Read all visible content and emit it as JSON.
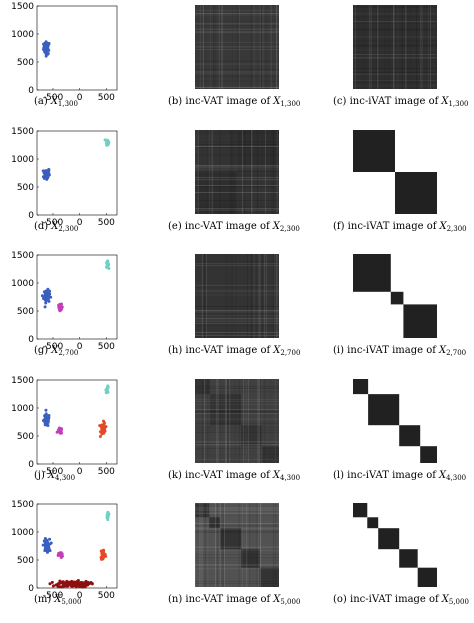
{
  "rows": [
    {
      "caption_a": {
        "label": "(a)",
        "var": "X",
        "sub": "1,300"
      },
      "caption_b": {
        "label": "(b) inc-VAT image of",
        "var": "X",
        "sub": "1,300"
      },
      "caption_c": {
        "label": "(c) inc-iVAT image of",
        "var": "X",
        "sub": "1,300"
      },
      "yticks": [
        "1500",
        "1000",
        "500",
        "0"
      ],
      "xticks": [
        "-500",
        "0",
        "500"
      ]
    },
    {
      "caption_a": {
        "label": "(d)",
        "var": "X",
        "sub": "2,300"
      },
      "caption_b": {
        "label": "(e) inc-VAT image of",
        "var": "X",
        "sub": "2,300"
      },
      "caption_c": {
        "label": "(f) inc-iVAT image of",
        "var": "X",
        "sub": "2,300"
      },
      "yticks": [
        "1500",
        "1000",
        "500",
        "0"
      ],
      "xticks": [
        "-500",
        "0",
        "500"
      ]
    },
    {
      "caption_a": {
        "label": "(g)",
        "var": "X",
        "sub": "2,700"
      },
      "caption_b": {
        "label": "(h) inc-VAT image of",
        "var": "X",
        "sub": "2,700"
      },
      "caption_c": {
        "label": "(i) inc-iVAT image of",
        "var": "X",
        "sub": "2,700"
      },
      "yticks": [
        "1500",
        "1000",
        "500",
        "0"
      ],
      "xticks": [
        "-500",
        "0",
        "500"
      ]
    },
    {
      "caption_a": {
        "label": "(j)",
        "var": "X",
        "sub": "4,300"
      },
      "caption_b": {
        "label": "(k) inc-VAT image of",
        "var": "X",
        "sub": "4,300"
      },
      "caption_c": {
        "label": "(l) inc-iVAT image of",
        "var": "X",
        "sub": "4,300"
      },
      "yticks": [
        "1500",
        "1000",
        "500",
        "0"
      ],
      "xticks": [
        "-500",
        "0",
        "500"
      ]
    },
    {
      "caption_a": {
        "label": "(m)",
        "var": "X",
        "sub": "5,000"
      },
      "caption_b": {
        "label": "(n) inc-VAT image of",
        "var": "X",
        "sub": "5,000"
      },
      "caption_c": {
        "label": "(o) inc-iVAT image of",
        "var": "X",
        "sub": "5,000"
      },
      "yticks": [
        "1500",
        "1000",
        "500",
        "0"
      ],
      "xticks": [
        "-500",
        "0",
        "500"
      ]
    }
  ],
  "chart_data": [
    {
      "type": "scatter",
      "xlim": [
        -800,
        700
      ],
      "ylim": [
        0,
        1500
      ],
      "clusters": [
        {
          "color": "#3a5fbf",
          "center": [
            -620,
            750
          ],
          "spread": [
            55,
            110
          ],
          "n": 60
        }
      ]
    },
    {
      "type": "scatter",
      "xlim": [
        -800,
        700
      ],
      "ylim": [
        0,
        1500
      ],
      "clusters": [
        {
          "color": "#3a5fbf",
          "center": [
            -620,
            730
          ],
          "spread": [
            55,
            110
          ],
          "n": 60
        },
        {
          "color": "#6fd1c5",
          "center": [
            520,
            1310
          ],
          "spread": [
            25,
            55
          ],
          "n": 20
        }
      ]
    },
    {
      "type": "scatter",
      "xlim": [
        -800,
        700
      ],
      "ylim": [
        0,
        1500
      ],
      "clusters": [
        {
          "color": "#3a5fbf",
          "center": [
            -620,
            760
          ],
          "spread": [
            55,
            110
          ],
          "n": 60
        },
        {
          "color": "#c23fb5",
          "center": [
            -360,
            570
          ],
          "spread": [
            40,
            50
          ],
          "n": 25
        },
        {
          "color": "#6fd1c5",
          "center": [
            520,
            1330
          ],
          "spread": [
            25,
            55
          ],
          "n": 20
        }
      ]
    },
    {
      "type": "scatter",
      "xlim": [
        -800,
        700
      ],
      "ylim": [
        0,
        1500
      ],
      "clusters": [
        {
          "color": "#3a5fbf",
          "center": [
            -620,
            780
          ],
          "spread": [
            55,
            110
          ],
          "n": 60
        },
        {
          "color": "#c23fb5",
          "center": [
            -370,
            590
          ],
          "spread": [
            40,
            50
          ],
          "n": 25
        },
        {
          "color": "#e5492a",
          "center": [
            440,
            630
          ],
          "spread": [
            45,
            110
          ],
          "n": 45
        },
        {
          "color": "#6fd1c5",
          "center": [
            520,
            1330
          ],
          "spread": [
            25,
            55
          ],
          "n": 20
        }
      ]
    },
    {
      "type": "scatter",
      "xlim": [
        -800,
        700
      ],
      "ylim": [
        0,
        1500
      ],
      "clusters": [
        {
          "color": "#3a5fbf",
          "center": [
            -620,
            760
          ],
          "spread": [
            55,
            110
          ],
          "n": 60
        },
        {
          "color": "#c23fb5",
          "center": [
            -360,
            590
          ],
          "spread": [
            40,
            50
          ],
          "n": 25
        },
        {
          "color": "#e5492a",
          "center": [
            440,
            600
          ],
          "spread": [
            45,
            110
          ],
          "n": 45
        },
        {
          "color": "#6fd1c5",
          "center": [
            530,
            1300
          ],
          "spread": [
            25,
            55
          ],
          "n": 20
        },
        {
          "color": "#8e0f0f",
          "center": [
            -120,
            70
          ],
          "spread": [
            300,
            55
          ],
          "n": 140
        }
      ]
    }
  ],
  "vat_images": [
    {
      "blocks": [
        [
          0,
          1
        ]
      ],
      "shade_in": 0.22,
      "shade_out": 0.3
    },
    {
      "blocks": [
        [
          0,
          0.5
        ],
        [
          0.5,
          1
        ]
      ],
      "shade_in": 0.2,
      "shade_out": 0.82
    },
    {
      "blocks": [
        [
          0,
          0.45
        ],
        [
          0.45,
          0.6
        ],
        [
          0.6,
          1
        ]
      ],
      "shade_in": 0.2,
      "shade_out": 0.8
    },
    {
      "blocks": [
        [
          0,
          0.18
        ],
        [
          0.18,
          0.55
        ],
        [
          0.55,
          0.8
        ],
        [
          0.8,
          1
        ]
      ],
      "shade_in": 0.2,
      "shade_out": 0.75
    },
    {
      "blocks": [
        [
          0,
          0.17
        ],
        [
          0.17,
          0.3
        ],
        [
          0.3,
          0.55
        ],
        [
          0.55,
          0.77
        ],
        [
          0.77,
          1
        ]
      ],
      "shade_in": 0.2,
      "shade_out": 0.68
    }
  ],
  "ivat_images": [
    {
      "blocks": [
        [
          0,
          1
        ]
      ],
      "shade_in": 0.18,
      "shade_out": 0.18
    },
    {
      "blocks": [
        [
          0,
          0.5
        ],
        [
          0.5,
          1
        ]
      ],
      "shade_in": 0.13,
      "shade_out": 1.0
    },
    {
      "blocks": [
        [
          0,
          0.45
        ],
        [
          0.45,
          0.6
        ],
        [
          0.6,
          1
        ]
      ],
      "shade_in": 0.13,
      "shade_out": 1.0
    },
    {
      "blocks": [
        [
          0,
          0.18
        ],
        [
          0.18,
          0.55
        ],
        [
          0.55,
          0.8
        ],
        [
          0.8,
          1
        ]
      ],
      "shade_in": 0.13,
      "shade_out": 1.0
    },
    {
      "blocks": [
        [
          0,
          0.17
        ],
        [
          0.17,
          0.3
        ],
        [
          0.3,
          0.55
        ],
        [
          0.55,
          0.77
        ],
        [
          0.77,
          1
        ]
      ],
      "shade_in": 0.13,
      "shade_out": 1.0
    }
  ]
}
